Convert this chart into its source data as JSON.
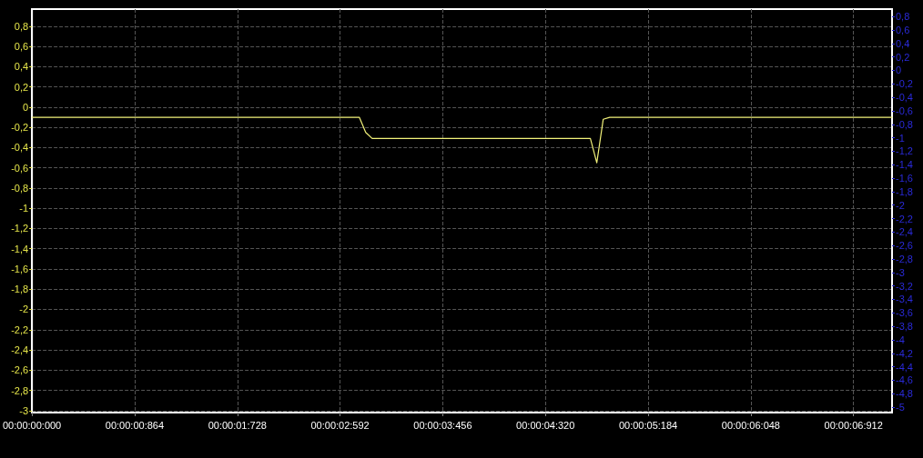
{
  "chart_data": {
    "type": "line",
    "marker": "none",
    "grid": true,
    "categories": [
      "00:00:00:000",
      null,
      null,
      null,
      null,
      null,
      null,
      null,
      null,
      null,
      null,
      null,
      null,
      null,
      null,
      null,
      "00:00:00:864",
      null,
      null,
      null,
      null,
      null,
      null,
      null,
      null,
      null,
      null,
      null,
      null,
      null,
      null,
      null,
      "00:00:01:728",
      null,
      null,
      null,
      null,
      null,
      null,
      null,
      null,
      null,
      null,
      null,
      null,
      null,
      null,
      null,
      "00:00:02:592",
      null,
      null,
      null,
      null,
      null,
      null,
      null,
      null,
      null,
      null,
      null,
      null,
      null,
      null,
      null,
      "00:00:03:456",
      null,
      null,
      null,
      null,
      null,
      null,
      null,
      null,
      null,
      null,
      null,
      null,
      null,
      null,
      null,
      "00:00:04:320",
      null,
      null,
      null,
      null,
      null,
      null,
      null,
      null,
      null,
      null,
      null,
      null,
      null,
      null,
      null,
      "00:00:05:184",
      null,
      null,
      null,
      null,
      null,
      null,
      null,
      null,
      null,
      null,
      null,
      null,
      null,
      null,
      null,
      "00:00:06:048",
      null,
      null,
      null,
      null,
      null,
      null,
      null,
      null,
      null,
      null,
      null,
      null,
      null,
      null,
      null,
      "00:00:06:912",
      null,
      null,
      null,
      null,
      null,
      null
    ],
    "series": [
      {
        "color": "#f2f27a",
        "values": [
          -0.1,
          -0.1,
          -0.1,
          -0.1,
          -0.1,
          -0.1,
          -0.1,
          -0.1,
          -0.1,
          -0.1,
          -0.1,
          -0.1,
          -0.1,
          -0.1,
          -0.1,
          -0.1,
          -0.1,
          -0.1,
          -0.1,
          -0.1,
          -0.1,
          -0.1,
          -0.1,
          -0.1,
          -0.1,
          -0.1,
          -0.1,
          -0.1,
          -0.1,
          -0.1,
          -0.1,
          -0.1,
          -0.1,
          -0.1,
          -0.1,
          -0.1,
          -0.1,
          -0.1,
          -0.1,
          -0.1,
          -0.1,
          -0.1,
          -0.1,
          -0.1,
          -0.1,
          -0.1,
          -0.1,
          -0.1,
          -0.1,
          -0.1,
          -0.1,
          -0.1,
          -0.25,
          -0.31,
          -0.31,
          -0.31,
          -0.31,
          -0.31,
          -0.31,
          -0.31,
          -0.31,
          -0.31,
          -0.31,
          -0.31,
          -0.31,
          -0.31,
          -0.31,
          -0.31,
          -0.31,
          -0.31,
          -0.31,
          -0.31,
          -0.31,
          -0.31,
          -0.31,
          -0.31,
          -0.31,
          -0.31,
          -0.31,
          -0.31,
          -0.31,
          -0.31,
          -0.31,
          -0.31,
          -0.31,
          -0.31,
          -0.31,
          -0.31,
          -0.55,
          -0.12,
          -0.1,
          -0.1,
          -0.1,
          -0.1,
          -0.1,
          -0.1,
          -0.1,
          -0.1,
          -0.1,
          -0.1,
          -0.1,
          -0.1,
          -0.1,
          -0.1,
          -0.1,
          -0.1,
          -0.1,
          -0.1,
          -0.1,
          -0.1,
          -0.1,
          -0.1,
          -0.1,
          -0.1,
          -0.1,
          -0.1,
          -0.1,
          -0.1,
          -0.1,
          -0.1,
          -0.1,
          -0.1,
          -0.1,
          -0.1,
          -0.1,
          -0.1,
          -0.1,
          -0.1,
          -0.1,
          -0.1,
          -0.1,
          -0.1,
          -0.1,
          -0.1,
          -0.1
        ]
      }
    ],
    "ylim": [
      -3.02,
      0.97
    ],
    "yticks": [
      {
        "value": 0.8,
        "label": "0,8"
      },
      {
        "value": 0.6,
        "label": "0,6"
      },
      {
        "value": 0.4,
        "label": "0,4"
      },
      {
        "value": 0.2,
        "label": "0,2"
      },
      0,
      {
        "value": -0.2,
        "label": "-0,2"
      },
      {
        "value": -0.4,
        "label": "-0,4"
      },
      {
        "value": -0.6,
        "label": "-0,6"
      },
      {
        "value": -0.8,
        "label": "-0,8"
      },
      -1,
      {
        "value": -1.2,
        "label": "-1,2"
      },
      {
        "value": -1.4,
        "label": "-1,4"
      },
      {
        "value": -1.6,
        "label": "-1,6"
      },
      {
        "value": -1.8,
        "label": "-1,8"
      },
      -2,
      {
        "value": -2.2,
        "label": "-2,2"
      },
      {
        "value": -2.4,
        "label": "-2,4"
      },
      {
        "value": -2.6,
        "label": "-2,6"
      },
      {
        "value": -2.8,
        "label": "-2,8"
      },
      -3
    ],
    "y2lim": [
      -5.08,
      0.91
    ],
    "y2ticks": [
      {
        "value": 0.8,
        "label": "0,8"
      },
      {
        "value": 0.6,
        "label": "0,6"
      },
      {
        "value": 0.4,
        "label": "0,4"
      },
      {
        "value": 0.2,
        "label": "0,2"
      },
      0,
      {
        "value": -0.2,
        "label": "-0,2"
      },
      {
        "value": -0.4,
        "label": "-0,4"
      },
      {
        "value": -0.6,
        "label": "-0,6"
      },
      {
        "value": -0.8,
        "label": "-0,8"
      },
      -1,
      {
        "value": -1.2,
        "label": "-1,2"
      },
      {
        "value": -1.4,
        "label": "-1,4"
      },
      {
        "value": -1.6,
        "label": "-1,6"
      },
      {
        "value": -1.8,
        "label": "-1,8"
      },
      -2,
      {
        "value": -2.2,
        "label": "-2,2"
      },
      {
        "value": -2.4,
        "label": "-2,4"
      },
      {
        "value": -2.6,
        "label": "-2,6"
      },
      {
        "value": -2.8,
        "label": "-2,8"
      },
      -3,
      {
        "value": -3.2,
        "label": "-3,2"
      },
      {
        "value": -3.4,
        "label": "-3,4"
      },
      {
        "value": -3.6,
        "label": "-3,6"
      },
      {
        "value": -3.8,
        "label": "-3,8"
      },
      -4,
      {
        "value": -4.2,
        "label": "-4,2"
      },
      {
        "value": -4.4,
        "label": "-4,4"
      },
      {
        "value": -4.6,
        "label": "-4,6"
      },
      {
        "value": -4.8,
        "label": "-4,8"
      },
      -5
    ]
  }
}
